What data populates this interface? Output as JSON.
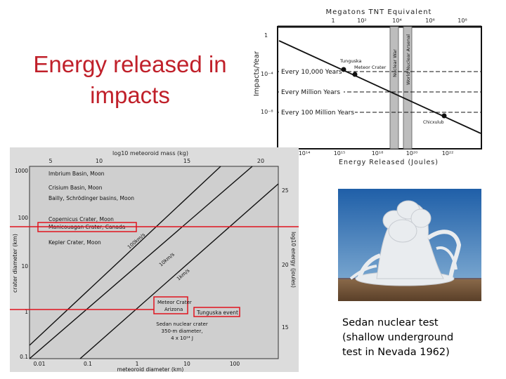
{
  "slide": {
    "title_lines": [
      "Energy released in",
      "impacts"
    ],
    "caption_lines": [
      "Sedan nuclear test",
      "(shallow underground",
      "test in Nevada 1962)"
    ]
  },
  "top_chart": {
    "top_axis_title": "Megatons TNT Equivalent",
    "top_ticks": [
      "1",
      "10²",
      "10⁴",
      "10⁶",
      "10⁸"
    ],
    "y_label": "Impacts/Year",
    "y_ticks": [
      "1",
      "10⁻⁴",
      "10⁻⁸"
    ],
    "x_label": "Energy Released (Joules)",
    "x_ticks": [
      "10¹⁴",
      "10¹⁵",
      "10¹⁸",
      "10²⁰",
      "10²²"
    ],
    "frequency_labels": [
      "Every 10,000 Years",
      "Every Million Years",
      "Every 100 Million Years"
    ],
    "events": [
      "Tunguska",
      "Meteor Crater",
      "Chicxulub"
    ],
    "bar_labels": [
      "Nuclear War",
      "World Nuclear Arsenal"
    ]
  },
  "bottom_chart": {
    "top_axis_title": "log10 meteoroid mass (kg)",
    "top_ticks": [
      "5",
      "10",
      "15",
      "20"
    ],
    "y_label": "crater diameter (km)",
    "y_ticks": [
      "1000",
      "100",
      "10",
      "1",
      "0.1"
    ],
    "x_label": "meteoroid diameter (km)",
    "x_ticks": [
      "0.01",
      "0.1",
      "1",
      "10",
      "100"
    ],
    "right_label": "log10 energy (joules)",
    "right_ticks": [
      "25",
      "20",
      "15"
    ],
    "craters": [
      "Imbrium Basin, Moon",
      "Crisium Basin, Moon",
      "Bailly, Schrödinger basins, Moon",
      "Copernicus Crater, Moon",
      "Manicouagan Crater, Canada",
      "Kepler Crater, Moon"
    ],
    "line_labels": [
      "100km/s",
      "10km/s",
      "1km/s"
    ],
    "meteor_crater": [
      "Meteor Crater",
      "Arizona"
    ],
    "tunguska": "Tunguska event",
    "sedan": [
      "Sedan nuclear crater",
      "350-m diameter,",
      "4 x 10¹⁴ J"
    ]
  },
  "colors": {
    "title": "#c0202a",
    "highlight": "#e0141e"
  }
}
